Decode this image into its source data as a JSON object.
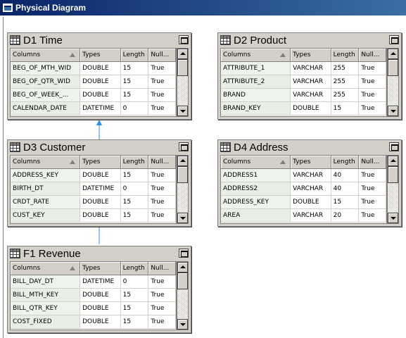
{
  "window": {
    "title": "Physical Diagram"
  },
  "column_headers": {
    "columns": "Columns",
    "types": "Types",
    "length": "Length",
    "nullable": "Null..."
  },
  "tables": [
    {
      "id": "d1",
      "title": "D1 Time",
      "rows": [
        {
          "column": "BEG_OF_MTH_WID",
          "type": "DOUBLE",
          "length": "15",
          "nullable": "True"
        },
        {
          "column": "BEG_OF_QTR_WID",
          "type": "DOUBLE",
          "length": "15",
          "nullable": "True"
        },
        {
          "column": "BEG_OF_WEEK_...",
          "type": "DOUBLE",
          "length": "15",
          "nullable": "True"
        },
        {
          "column": "CALENDAR_DATE",
          "type": "DATETIME",
          "length": "0",
          "nullable": "True"
        }
      ]
    },
    {
      "id": "d2",
      "title": "D2 Product",
      "rows": [
        {
          "column": "ATTRIBUTE_1",
          "type": "VARCHAR",
          "length": "255",
          "nullable": "True"
        },
        {
          "column": "ATTRIBUTE_2",
          "type": "VARCHAR",
          "length": "255",
          "nullable": "True"
        },
        {
          "column": "BRAND",
          "type": "VARCHAR",
          "length": "255",
          "nullable": "True"
        },
        {
          "column": "BRAND_KEY",
          "type": "DOUBLE",
          "length": "15",
          "nullable": "True"
        }
      ]
    },
    {
      "id": "d3",
      "title": "D3 Customer",
      "rows": [
        {
          "column": "ADDRESS_KEY",
          "type": "DOUBLE",
          "length": "15",
          "nullable": "True"
        },
        {
          "column": "BIRTH_DT",
          "type": "DATETIME",
          "length": "0",
          "nullable": "True"
        },
        {
          "column": "CRDT_RATE",
          "type": "DOUBLE",
          "length": "15",
          "nullable": "True"
        },
        {
          "column": "CUST_KEY",
          "type": "DOUBLE",
          "length": "15",
          "nullable": "True"
        }
      ]
    },
    {
      "id": "d4",
      "title": "D4 Address",
      "rows": [
        {
          "column": "ADDRESS1",
          "type": "VARCHAR",
          "length": "40",
          "nullable": "True"
        },
        {
          "column": "ADDRESS2",
          "type": "VARCHAR",
          "length": "40",
          "nullable": "True"
        },
        {
          "column": "ADDRESS_KEY",
          "type": "DOUBLE",
          "length": "15",
          "nullable": "True"
        },
        {
          "column": "AREA",
          "type": "VARCHAR",
          "length": "20",
          "nullable": "True"
        }
      ]
    },
    {
      "id": "f1",
      "title": "F1 Revenue",
      "rows": [
        {
          "column": "BILL_DAY_DT",
          "type": "DATETIME",
          "length": "0",
          "nullable": "True"
        },
        {
          "column": "BILL_MTH_KEY",
          "type": "DOUBLE",
          "length": "15",
          "nullable": "True"
        },
        {
          "column": "BILL_QTR_KEY",
          "type": "DOUBLE",
          "length": "15",
          "nullable": "True"
        },
        {
          "column": "COST_FIXED",
          "type": "DOUBLE",
          "length": "15",
          "nullable": "True"
        }
      ]
    }
  ],
  "colors": {
    "title_bar_start": "#0a246a",
    "title_bar_end": "#3a6ea5",
    "connector": "#1e90ff"
  }
}
